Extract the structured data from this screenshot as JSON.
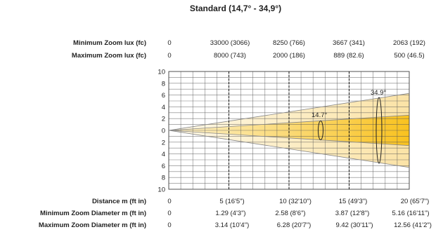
{
  "title": "Standard (14,7° - 34,9°)",
  "top_rows": [
    {
      "label": "Minimum Zoom  lux (fc)",
      "values": [
        "0",
        "33000 (3066)",
        "8250 (766)",
        "3667 (341)",
        "2063 (192)"
      ]
    },
    {
      "label": "Maximum Zoom  lux (fc)",
      "values": [
        "0",
        "8000 (743)",
        "2000 (186)",
        "889 (82.6)",
        "500 (46.5)"
      ]
    }
  ],
  "bottom_rows": [
    {
      "label": "Distance m (ft in)",
      "values": [
        "0",
        "5  (16'5\")",
        "10  (32'10\")",
        "15  (49'3\")",
        "20  (65'7\")"
      ]
    },
    {
      "label": "Minimum Zoom  Diameter m (ft in)",
      "values": [
        "0",
        "1.29  (4'3\")",
        "2.58  (8'6\")",
        "3.87  (12'8\")",
        "5.16  (16'11\")"
      ]
    },
    {
      "label": "Maximum Zoom  Diameter m (ft in)",
      "values": [
        "0",
        "3.14  (10'4\")",
        "6.28  (20'7\")",
        "9.42  (30'11\")",
        "12.56  (41'2\")"
      ]
    }
  ],
  "chart_data": {
    "type": "beam-diagram",
    "y_ticks": [
      "10",
      "8",
      "6",
      "4",
      "2",
      "0",
      "2",
      "4",
      "6",
      "8",
      "10"
    ],
    "beams": [
      {
        "angle_label": "14.7°",
        "half_angle_deg": 7.35,
        "color": "#f7c21a"
      },
      {
        "angle_label": "34.9°",
        "half_angle_deg": 17.45,
        "color": "#fbe7b5"
      }
    ],
    "distance_max_m": 20,
    "dashed_distances_m": [
      5,
      10,
      15
    ]
  }
}
